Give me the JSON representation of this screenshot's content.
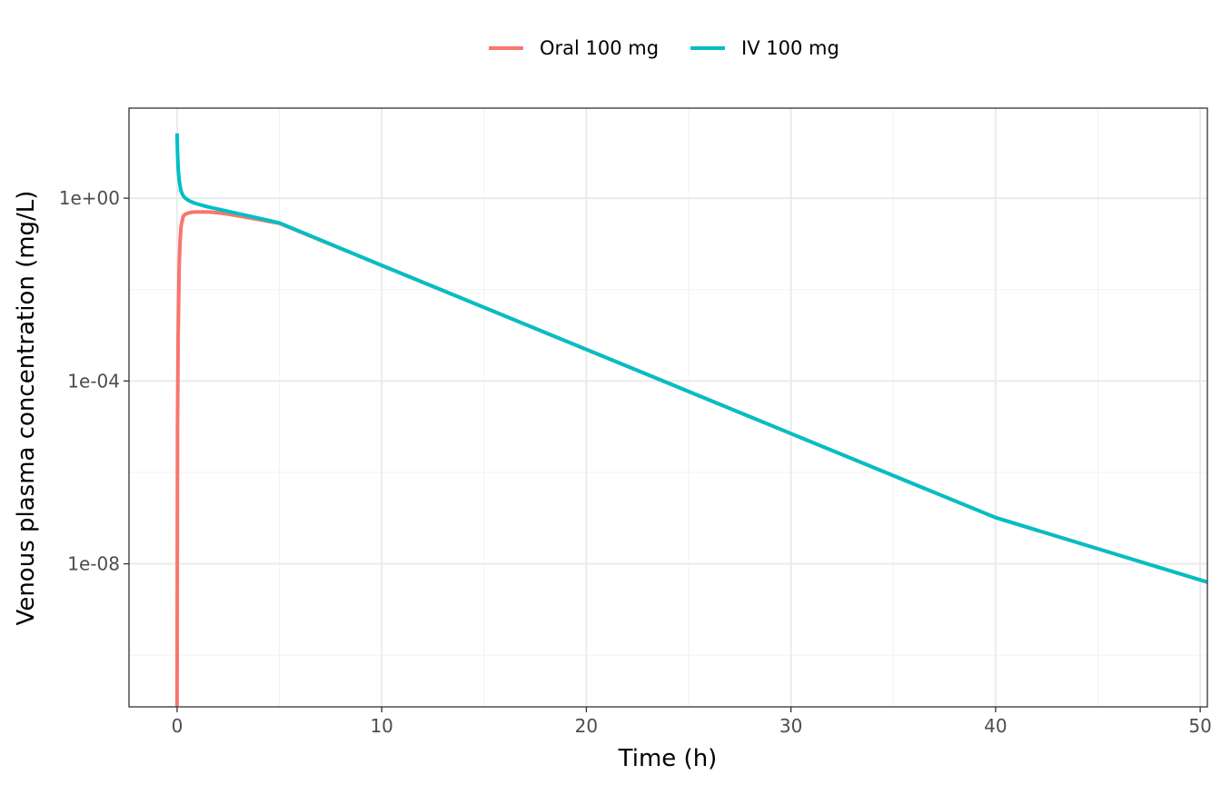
{
  "chart_data": {
    "type": "line",
    "xlabel": "Time (h)",
    "ylabel": "Venous plasma concentration (mg/L)",
    "y_scale": "log10",
    "xlim": [
      -2.35,
      50.35
    ],
    "ylim_log10": [
      -11.13,
      1.97
    ],
    "x_ticks": [
      0,
      10,
      20,
      30,
      40,
      50
    ],
    "x_tick_labels": [
      "0",
      "10",
      "20",
      "30",
      "40",
      "50"
    ],
    "y_ticks_log10": [
      0,
      -4,
      -8
    ],
    "y_tick_labels": [
      "1e+00",
      "1e-04",
      "1e-08"
    ],
    "grid": true,
    "legend_position": "top",
    "series": [
      {
        "name": "Oral 100 mg",
        "color": "#F8766D",
        "x": [
          0,
          0.02,
          0.05,
          0.1,
          0.15,
          0.2,
          0.3,
          0.4,
          0.6,
          0.8,
          1.0,
          1.3,
          1.6,
          2.0,
          2.5,
          3.0,
          4.0,
          5.0,
          10,
          20,
          30,
          40,
          50.35
        ],
        "log10_y": [
          -11.13,
          -5.0,
          -3.0,
          -1.5,
          -0.9,
          -0.6,
          -0.4,
          -0.35,
          -0.32,
          -0.305,
          -0.3,
          -0.3,
          -0.305,
          -0.32,
          -0.35,
          -0.39,
          -0.47,
          -0.55,
          -1.47,
          -3.31,
          -5.15,
          -6.99,
          -8.4
        ]
      },
      {
        "name": "IV 100 mg",
        "color": "#00BFC4",
        "x": [
          0,
          0.02,
          0.05,
          0.1,
          0.15,
          0.2,
          0.3,
          0.4,
          0.6,
          0.8,
          1.0,
          1.5,
          2.0,
          2.5,
          3.0,
          4.0,
          5.0,
          10,
          20,
          30,
          40,
          50.35
        ],
        "log10_y": [
          1.42,
          1.0,
          0.65,
          0.4,
          0.25,
          0.15,
          0.05,
          0.0,
          -0.06,
          -0.1,
          -0.13,
          -0.19,
          -0.24,
          -0.29,
          -0.34,
          -0.44,
          -0.54,
          -1.47,
          -3.31,
          -5.15,
          -6.99,
          -8.4
        ]
      }
    ]
  }
}
